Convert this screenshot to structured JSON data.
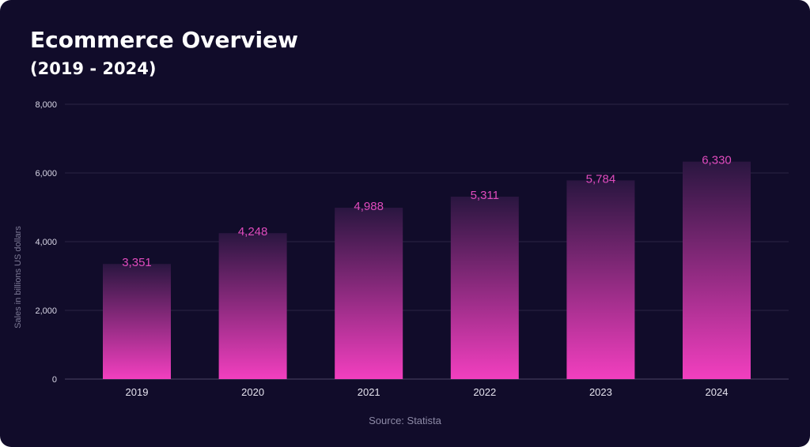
{
  "title": "Ecommerce Overview",
  "subtitle": "(2019 - 2024)",
  "source": "Source: Statista",
  "colors": {
    "background": "#110c2a",
    "bar_top": "#2a1640",
    "bar_bottom": "#f23fbf",
    "data_label": "#e04bbd",
    "grid": "#2a2544"
  },
  "chart_data": {
    "type": "bar",
    "categories": [
      "2019",
      "2020",
      "2021",
      "2022",
      "2023",
      "2024"
    ],
    "values": [
      3351,
      4248,
      4988,
      5311,
      5784,
      6330
    ],
    "data_labels": [
      "3,351",
      "4,248",
      "4,988",
      "5,311",
      "5,784",
      "6,330"
    ],
    "title": "Ecommerce Overview",
    "subtitle": "(2019 - 2024)",
    "xlabel": "",
    "ylabel": "Sales in billions US dollars",
    "ylim": [
      0,
      8000
    ],
    "yticks": [
      0,
      2000,
      4000,
      6000,
      8000
    ],
    "ytick_labels": [
      "0",
      "2,000",
      "4,000",
      "6,000",
      "8,000"
    ],
    "grid": true,
    "legend": "none"
  }
}
